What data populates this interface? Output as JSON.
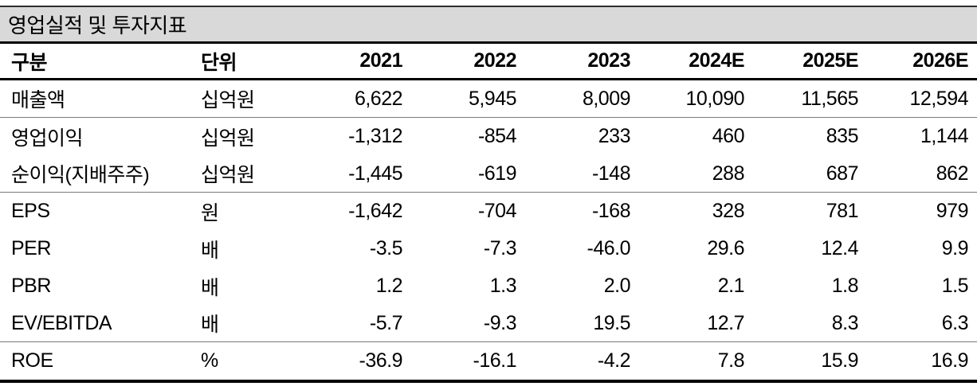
{
  "title": "영업실적 및 투자지표",
  "table": {
    "columns": [
      "구분",
      "단위",
      "2021",
      "2022",
      "2023",
      "2024E",
      "2025E",
      "2026E"
    ],
    "rows": [
      {
        "label": "매출액",
        "unit": "십억원",
        "values": [
          "6,622",
          "5,945",
          "8,009",
          "10,090",
          "11,565",
          "12,594"
        ],
        "group_end": true
      },
      {
        "label": "영업이익",
        "unit": "십억원",
        "values": [
          "-1,312",
          "-854",
          "233",
          "460",
          "835",
          "1,144"
        ],
        "group_end": false
      },
      {
        "label": "순이익(지배주주)",
        "unit": "십억원",
        "values": [
          "-1,445",
          "-619",
          "-148",
          "288",
          "687",
          "862"
        ],
        "group_end": true
      },
      {
        "label": "EPS",
        "unit": "원",
        "values": [
          "-1,642",
          "-704",
          "-168",
          "328",
          "781",
          "979"
        ],
        "group_end": false
      },
      {
        "label": "PER",
        "unit": "배",
        "values": [
          "-3.5",
          "-7.3",
          "-46.0",
          "29.6",
          "12.4",
          "9.9"
        ],
        "group_end": false
      },
      {
        "label": "PBR",
        "unit": "배",
        "values": [
          "1.2",
          "1.3",
          "2.0",
          "2.1",
          "1.8",
          "1.5"
        ],
        "group_end": false
      },
      {
        "label": "EV/EBITDA",
        "unit": "배",
        "values": [
          "-5.7",
          "-9.3",
          "19.5",
          "12.7",
          "8.3",
          "6.3"
        ],
        "group_end": true
      },
      {
        "label": "ROE",
        "unit": "%",
        "values": [
          "-36.9",
          "-16.1",
          "-4.2",
          "7.8",
          "15.9",
          "16.9"
        ],
        "group_end": false
      }
    ]
  },
  "colors": {
    "title_background": "#d9d9d9",
    "text": "#000000",
    "heavy_rule": "#000000",
    "light_rule": "#7a7a7a"
  }
}
